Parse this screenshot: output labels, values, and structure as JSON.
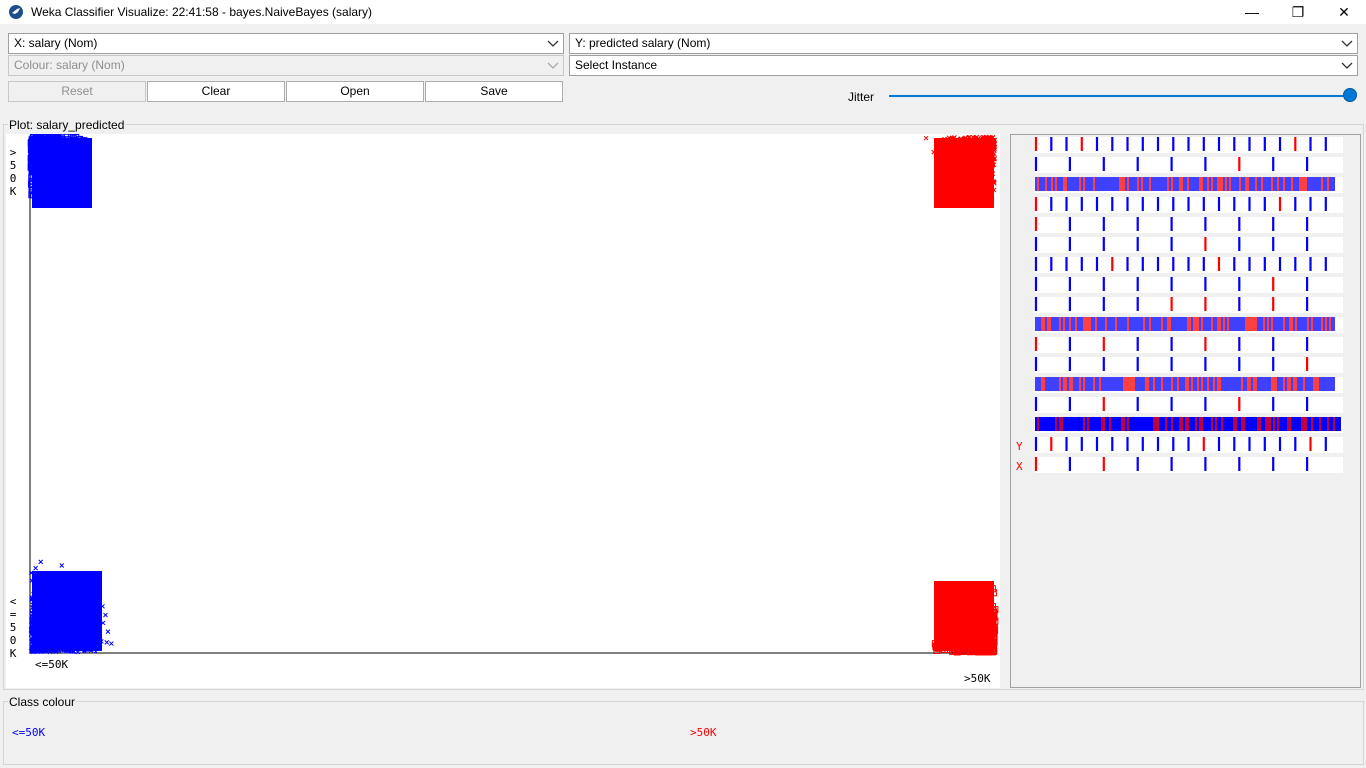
{
  "window": {
    "title": "Weka Classifier Visualize: 22:41:58 - bayes.NaiveBayes (salary)",
    "minimize": "—",
    "maximize": "❐",
    "close": "✕"
  },
  "controls": {
    "x_axis": "X: salary (Nom)",
    "y_axis": "Y: predicted salary (Nom)",
    "colour": "Colour: salary (Nom)",
    "select_instance": "Select Instance",
    "reset_label": "Reset",
    "clear_label": "Clear",
    "open_label": "Open",
    "save_label": "Save",
    "jitter_label": "Jitter",
    "jitter_level": 1.0
  },
  "plot": {
    "title": "Plot: salary_predicted",
    "y_ticks": [
      "<=50K",
      ">50K"
    ],
    "x_ticks": [
      "<=50K",
      ">50K"
    ]
  },
  "matrix": {
    "y_label": "Y",
    "x_label": "X"
  },
  "legend": {
    "title": "Class colour",
    "items": [
      {
        "label": "<=50K",
        "color": "#0000ff"
      },
      {
        "label": ">50K",
        "color": "#ff0000"
      }
    ]
  },
  "chart_data": {
    "type": "scatter",
    "title": "Plot: salary_predicted",
    "xlabel": "salary",
    "ylabel": "predicted salary",
    "x_categories": [
      "<=50K",
      ">50K"
    ],
    "y_categories": [
      "<=50K",
      ">50K"
    ],
    "jitter": "maximum",
    "series": [
      {
        "name": "<=50K",
        "color": "#0000ff",
        "correct_marker": "cross",
        "incorrect_marker": "square"
      },
      {
        "name": ">50K",
        "color": "#ff0000",
        "correct_marker": "cross",
        "incorrect_marker": "square"
      }
    ],
    "clusters": [
      {
        "x": "<=50K",
        "y": "<=50K",
        "class": "<=50K",
        "marker": "cross",
        "relative_size": "large"
      },
      {
        "x": "<=50K",
        "y": ">50K",
        "class": "<=50K",
        "marker": "square",
        "relative_size": "medium"
      },
      {
        "x": ">50K",
        "y": ">50K",
        "class": ">50K",
        "marker": "cross",
        "relative_size": "medium"
      },
      {
        "x": ">50K",
        "y": "<=50K",
        "class": ">50K",
        "marker": "square",
        "relative_size": "medium"
      }
    ]
  }
}
